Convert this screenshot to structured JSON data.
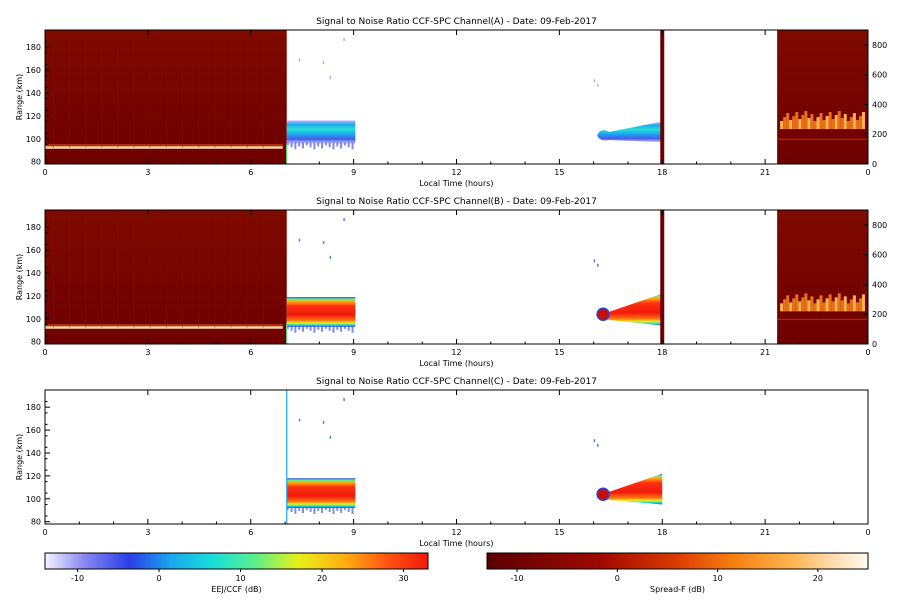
{
  "chart_data": [
    {
      "type": "heatmap",
      "title": "Signal to Noise Ratio CCF-SPC Channel(A) - Date: 09-Feb-2017",
      "xlabel": "Local Time (hours)",
      "ylabel": "Range (km)",
      "xlim": [
        0,
        24
      ],
      "ylim": [
        78,
        195
      ],
      "x_ticks": [
        "0",
        "3",
        "6",
        "9",
        "12",
        "15",
        "18",
        "21",
        "0"
      ],
      "y_ticks": [
        "80",
        "100",
        "120",
        "140",
        "160",
        "180"
      ],
      "right_ticks": [
        "0",
        "200",
        "400",
        "600",
        "800"
      ],
      "right_lim": [
        0,
        900
      ],
      "spreadf_intervals": [
        [
          0,
          7.05
        ],
        [
          21.35,
          24
        ]
      ],
      "eej_patches": [
        {
          "x0": 7.05,
          "x1": 9.05,
          "ylo": 96,
          "yhi": 116,
          "core": 10
        },
        {
          "x0": 16.1,
          "x1": 18.0,
          "ylo": 97,
          "yhi": 115,
          "core": 8
        }
      ],
      "mark_at_18": true
    },
    {
      "type": "heatmap",
      "title": "Signal to Noise Ratio CCF-SPC Channel(B) - Date: 09-Feb-2017",
      "xlabel": "Local Time (hours)",
      "ylabel": "Range (km)",
      "xlim": [
        0,
        24
      ],
      "ylim": [
        78,
        195
      ],
      "x_ticks": [
        "0",
        "3",
        "6",
        "9",
        "12",
        "15",
        "18",
        "21",
        "0"
      ],
      "y_ticks": [
        "80",
        "100",
        "120",
        "140",
        "160",
        "180"
      ],
      "right_ticks": [
        "0",
        "200",
        "400",
        "600",
        "800"
      ],
      "right_lim": [
        0,
        900
      ],
      "spreadf_intervals": [
        [
          0,
          7.05
        ],
        [
          21.35,
          24
        ]
      ],
      "eej_patches": [
        {
          "x0": 7.05,
          "x1": 9.05,
          "ylo": 93,
          "yhi": 119,
          "core": 27
        },
        {
          "x0": 16.1,
          "x1": 18.0,
          "ylo": 94,
          "yhi": 122,
          "core": 27
        }
      ],
      "mark_at_18": true
    },
    {
      "type": "heatmap",
      "title": "Signal to Noise Ratio CCF-SPC Channel(C) - Date: 09-Feb-2017",
      "xlabel": "Local Time (hours)",
      "ylabel": "Range (km)",
      "xlim": [
        0,
        24
      ],
      "ylim": [
        78,
        195
      ],
      "x_ticks": [
        "0",
        "3",
        "6",
        "9",
        "12",
        "15",
        "18",
        "21",
        "0"
      ],
      "y_ticks": [
        "80",
        "100",
        "120",
        "140",
        "160",
        "180"
      ],
      "right_ticks": [],
      "right_lim": [
        0,
        900
      ],
      "spreadf_intervals": [],
      "eej_patches": [
        {
          "x0": 7.05,
          "x1": 9.05,
          "ylo": 92,
          "yhi": 118,
          "core": 27
        },
        {
          "x0": 16.1,
          "x1": 18.0,
          "ylo": 95,
          "yhi": 122,
          "core": 27
        }
      ],
      "mark_at_18": false
    }
  ],
  "colorbars": [
    {
      "label": "EEJ/CCF (dB)",
      "ticks": [
        "-10",
        "0",
        "10",
        "20",
        "30"
      ],
      "tick_values": [
        -10,
        0,
        10,
        20,
        30
      ],
      "range": [
        -14,
        33
      ],
      "palette": "rainbow"
    },
    {
      "label": "Spread-F (dB)",
      "ticks": [
        "-10",
        "0",
        "10",
        "20"
      ],
      "tick_values": [
        -10,
        0,
        10,
        20
      ],
      "range": [
        -13,
        25
      ],
      "palette": "heat"
    }
  ]
}
